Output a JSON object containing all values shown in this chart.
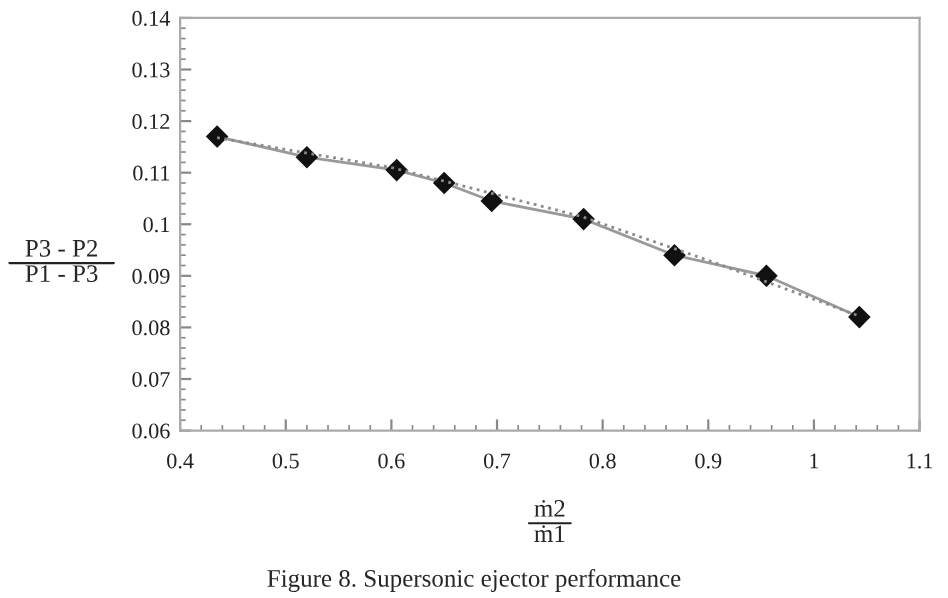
{
  "chart_data": {
    "type": "line",
    "xlabel": "ṁ2\nṁ1",
    "ylabel": "P3 - P2\nP1 - P3",
    "annotations": [
      "Figure 8. Supersonic ejector performance"
    ],
    "xlim": [
      0.4,
      1.1
    ],
    "xticks": [
      0.4,
      0.5,
      0.6,
      0.7,
      0.8,
      0.9,
      1,
      1.1
    ],
    "ylim": [
      0.06,
      0.14
    ],
    "yticks": [
      0.06,
      0.07,
      0.08,
      0.09,
      0.1,
      0.11,
      0.12,
      0.13,
      0.14
    ],
    "grid": false,
    "legend": false,
    "series": [
      {
        "color": "#9a9a9a",
        "marker": "diamond",
        "line_style": "solid",
        "x": [
          0.435,
          0.52,
          0.605,
          0.65,
          0.695,
          0.782,
          0.868,
          0.955,
          1.043
        ],
        "values": [
          0.117,
          0.113,
          0.1105,
          0.108,
          0.1045,
          0.101,
          0.094,
          0.09,
          0.082
        ]
      },
      {
        "color": "#8a8a8a",
        "marker": "none",
        "line_style": "dotted",
        "x": [
          0.435,
          0.6,
          0.78,
          0.9,
          1.043
        ],
        "values": [
          0.1168,
          0.111,
          0.1015,
          0.093,
          0.0822
        ]
      }
    ]
  }
}
